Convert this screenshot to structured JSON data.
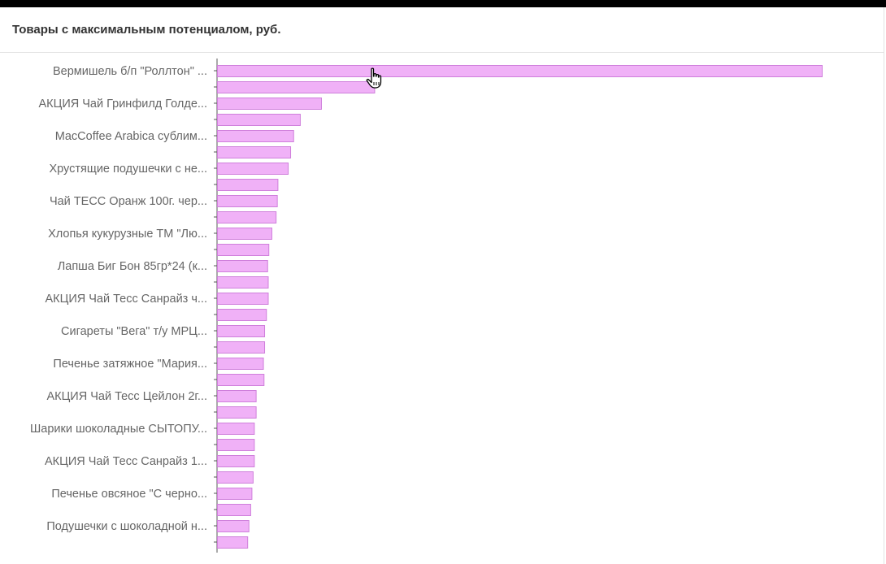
{
  "panel": {
    "title": "Товары с максимальным потенциалом, руб."
  },
  "colors": {
    "bar_fill": "#f0b1f7",
    "bar_stroke": "#cf7fdb",
    "axis": "#555555",
    "label": "#666666"
  },
  "chart_data": {
    "type": "bar",
    "orientation": "horizontal",
    "title": "Товары с максимальным потенциалом, руб.",
    "xlabel": "",
    "ylabel": "",
    "grid": false,
    "labels": [
      "Вермишель б/п \"Роллтон\" ...",
      "",
      "АКЦИЯ Чай Гринфилд Голде...",
      "",
      "MacCoffee Arabica сублим...",
      "",
      "Хрустящие подушечки с не...",
      "",
      "Чай ТЕСС Оранж 100г. чер...",
      "",
      "Хлопья кукурузные ТМ \"Лю...",
      "",
      "Лапша Биг Бон 85гр*24 (к...",
      "",
      "АКЦИЯ Чай Тесс Санрайз ч...",
      "",
      "Сигареты \"Вега\" т/у МРЦ...",
      "",
      "Печенье затяжное \"Мария...",
      "",
      "АКЦИЯ Чай Тесс Цейлон 2г...",
      "",
      "Шарики шоколадные СЫТОПУ...",
      "",
      "АКЦИЯ Чай Тесс Санрайз 1...",
      "",
      "Печенье овсяное \"С черно...",
      "",
      "Подушечки с шоколадной н...",
      ""
    ],
    "values": [
      100,
      26,
      17.2,
      13.7,
      12.6,
      12.1,
      11.7,
      10,
      9.9,
      9.7,
      9,
      8.5,
      8.3,
      8.4,
      8.4,
      8.1,
      7.8,
      7.8,
      7.6,
      7.7,
      6.4,
      6.4,
      6.1,
      6.1,
      6.1,
      5.9,
      5.7,
      5.5,
      5.2,
      5
    ],
    "xlim": [
      0,
      100
    ]
  }
}
